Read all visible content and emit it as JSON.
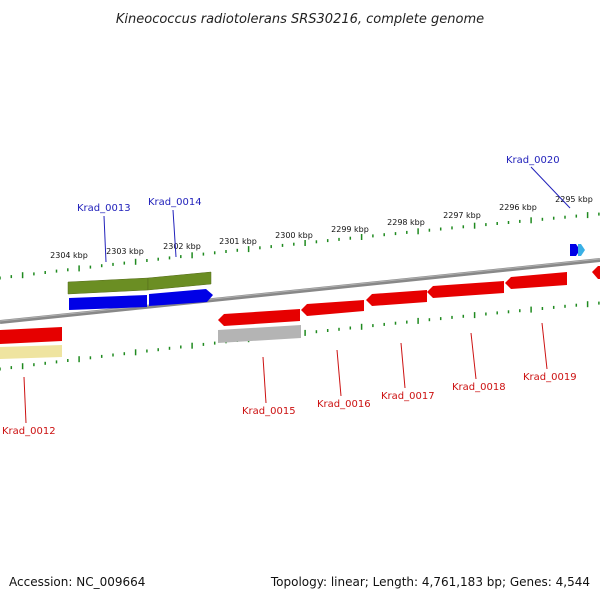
{
  "title": "Kineococcus radiotolerans SRS30216, complete genome",
  "accession": "Accession: NC_009664",
  "summary": "Topology: linear; Length: 4,761,183 bp; Genes: 4,544",
  "colors": {
    "background": "#ffffff",
    "backbone": "#8a8a8a",
    "tick": "#1f8a1f",
    "forward_cds": "#0000e6",
    "reverse_cds": "#e60000",
    "forward_label": "#2222bb",
    "reverse_label": "#cc1111",
    "gene_olive": "#6b8e23",
    "gene_gray": "#b4b4b4",
    "gene_pale": "#efe4a0"
  },
  "ticks": [
    {
      "label": "2304 kbp"
    },
    {
      "label": "2303 kbp"
    },
    {
      "label": "2302 kbp"
    },
    {
      "label": "2301 kbp"
    },
    {
      "label": "2300 kbp"
    },
    {
      "label": "2299 kbp"
    },
    {
      "label": "2298 kbp"
    },
    {
      "label": "2297 kbp"
    },
    {
      "label": "2296 kbp"
    },
    {
      "label": "2295 kbp"
    }
  ],
  "genes": [
    {
      "name": "Krad_0012",
      "strand": "reverse"
    },
    {
      "name": "Krad_0013",
      "strand": "forward"
    },
    {
      "name": "Krad_0014",
      "strand": "forward"
    },
    {
      "name": "Krad_0015",
      "strand": "reverse"
    },
    {
      "name": "Krad_0016",
      "strand": "reverse"
    },
    {
      "name": "Krad_0017",
      "strand": "reverse"
    },
    {
      "name": "Krad_0018",
      "strand": "reverse"
    },
    {
      "name": "Krad_0019",
      "strand": "reverse"
    },
    {
      "name": "Krad_0020",
      "strand": "forward"
    }
  ]
}
